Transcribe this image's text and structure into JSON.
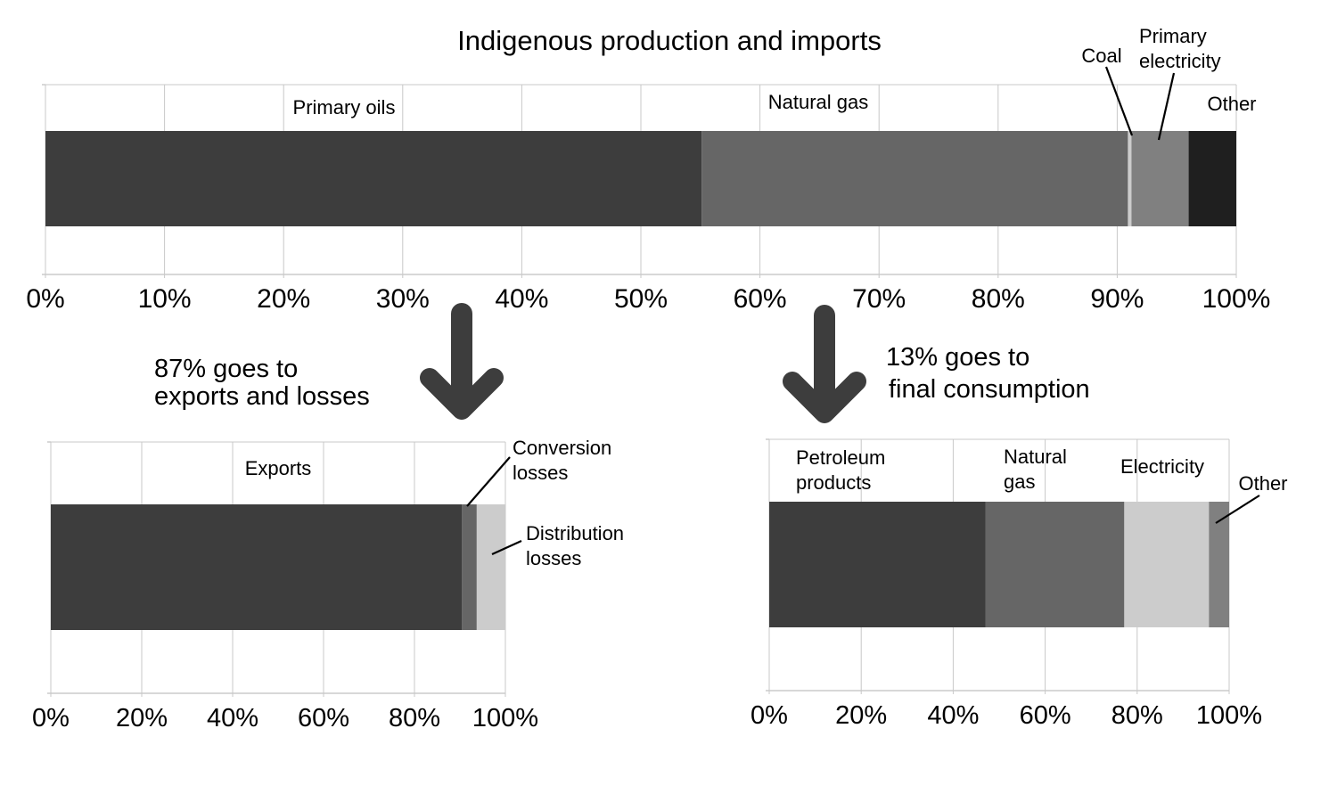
{
  "chart_data": [
    {
      "type": "bar",
      "orientation": "horizontal-stacked-100",
      "title": "Indigenous production and imports",
      "xlim": [
        0,
        100
      ],
      "ticks": [
        "0%",
        "10%",
        "20%",
        "30%",
        "40%",
        "50%",
        "60%",
        "70%",
        "80%",
        "90%",
        "100%"
      ],
      "series": [
        {
          "name": "Primary oils",
          "value": 55.1,
          "color": "#3d3d3d"
        },
        {
          "name": "Natural gas",
          "value": 35.8,
          "color": "#666666"
        },
        {
          "name": "Coal",
          "value": 0.3,
          "color": "#cccccc"
        },
        {
          "name": "Primary electricity",
          "value": 4.8,
          "color": "#808080"
        },
        {
          "name": "Other",
          "value": 4.0,
          "color": "#1f1f1f"
        }
      ],
      "grid": true
    },
    {
      "type": "bar",
      "orientation": "horizontal-stacked-100",
      "note": [
        "87% goes to",
        "exports and losses"
      ],
      "xlim": [
        0,
        100
      ],
      "ticks": [
        "0%",
        "20%",
        "40%",
        "60%",
        "80%",
        "100%"
      ],
      "series": [
        {
          "name": "Exports",
          "value": 90.4,
          "color": "#3d3d3d"
        },
        {
          "name": "Conversion losses",
          "value": 3.3,
          "color": "#666666"
        },
        {
          "name": "Distribution losses",
          "value": 6.3,
          "color": "#cccccc"
        }
      ],
      "grid": true
    },
    {
      "type": "bar",
      "orientation": "horizontal-stacked-100",
      "note": [
        "13% goes to",
        "final consumption"
      ],
      "xlim": [
        0,
        100
      ],
      "ticks": [
        "0%",
        "20%",
        "40%",
        "60%",
        "80%",
        "100%"
      ],
      "series": [
        {
          "name": "Petroleum products",
          "value": 47.0,
          "color": "#3d3d3d"
        },
        {
          "name": "Natural gas",
          "value": 30.2,
          "color": "#666666"
        },
        {
          "name": "Electricity",
          "value": 18.4,
          "color": "#cccccc"
        },
        {
          "name": "Other",
          "value": 4.4,
          "color": "#808080"
        }
      ],
      "grid": true
    }
  ],
  "arrow_color": "#3d3d3d"
}
